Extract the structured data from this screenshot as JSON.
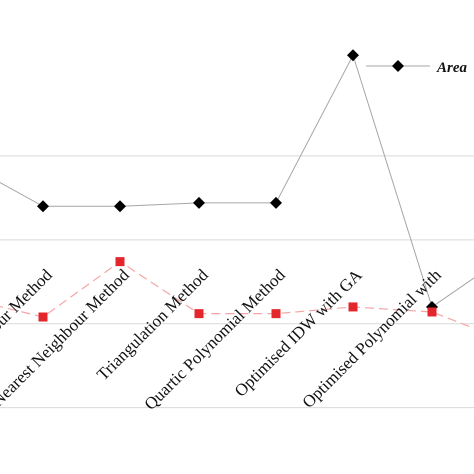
{
  "chart_data": {
    "type": "line",
    "categories": [
      "Method",
      "Neighbour Method",
      "Nearest Neighbour Method",
      "Triangulation Method",
      "Quartic Polynomial Method",
      "Optimised IDW with GA",
      "Optimised Polynomial with"
    ],
    "series": [
      {
        "name": "Area",
        "color": "#000000",
        "marker": "diamond",
        "values": [
          2.45,
          2.2,
          2.2,
          2.22,
          2.22,
          3.1,
          1.6
        ]
      },
      {
        "name": "",
        "color": "#e3262b",
        "marker": "square",
        "values": [
          1.65,
          1.54,
          1.87,
          1.56,
          1.56,
          1.6,
          1.57
        ]
      }
    ],
    "grid": true,
    "legend_position": "top-right",
    "ylim": [
      0.8,
      3.4
    ]
  }
}
